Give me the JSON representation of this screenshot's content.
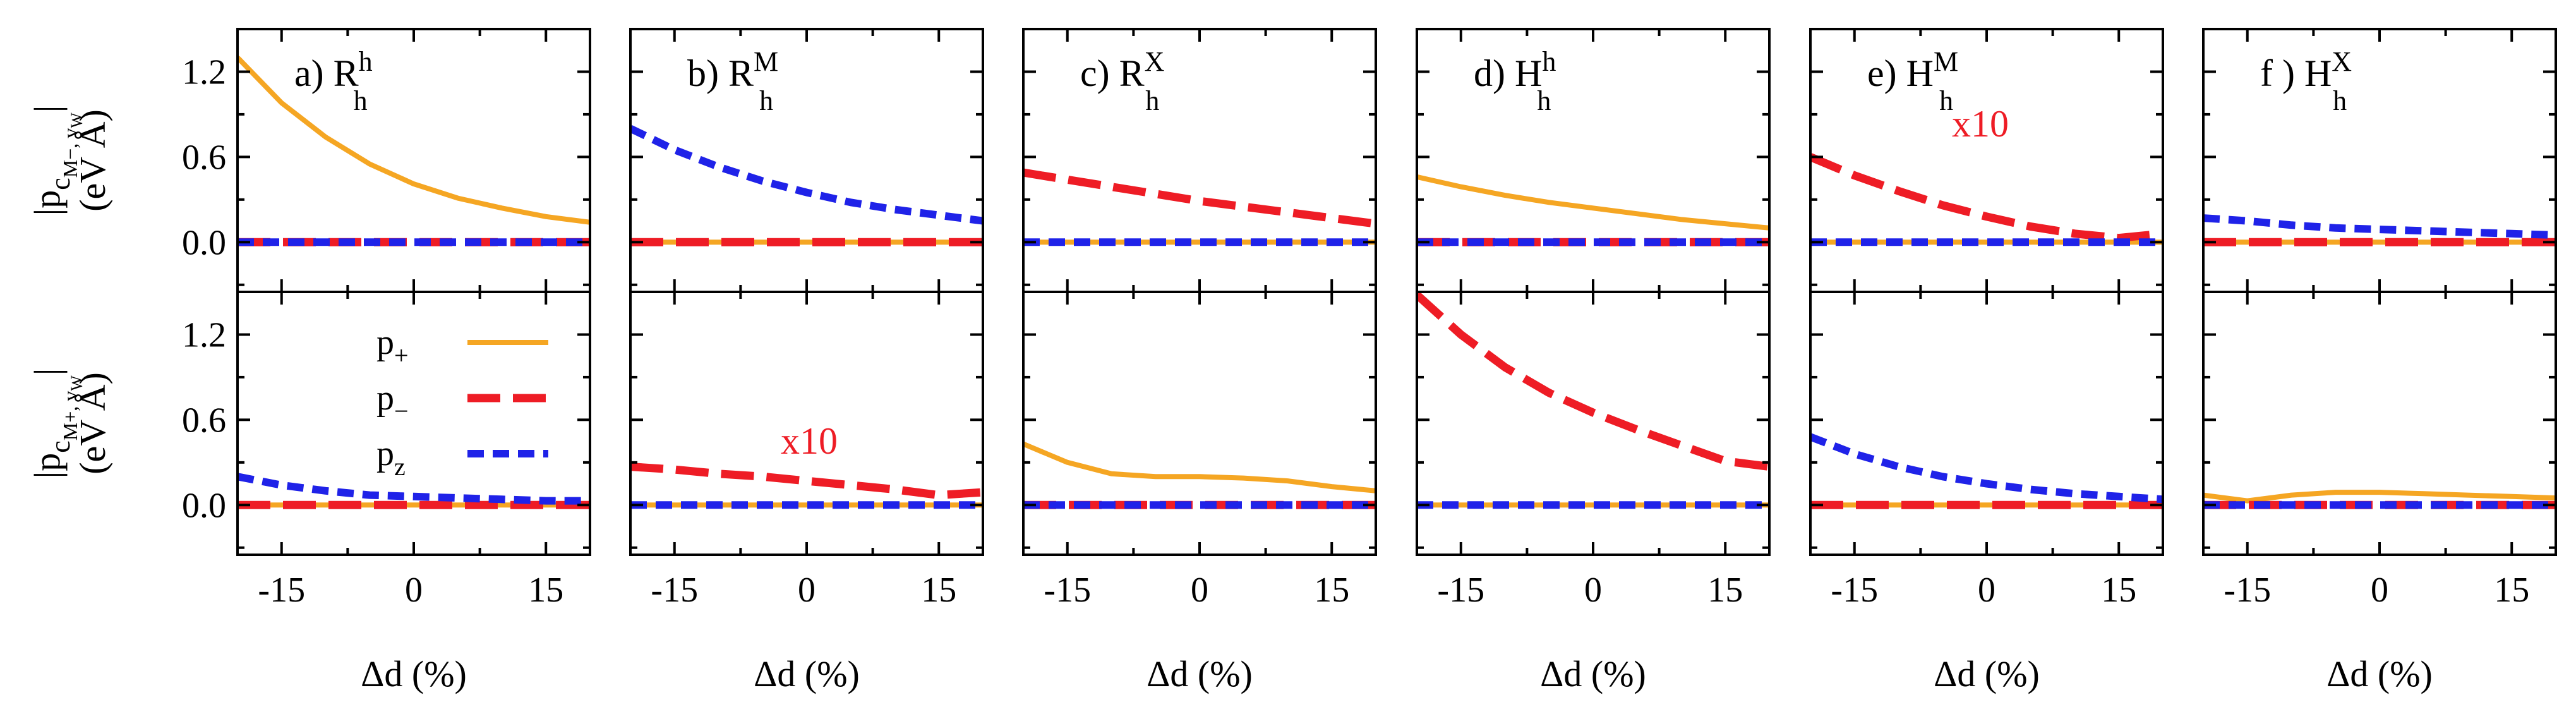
{
  "chart_data": {
    "type": "line",
    "layout": "2 rows x 6 columns of panels sharing axes",
    "x": [
      -20,
      -15,
      -10,
      -5,
      0,
      5,
      10,
      15,
      20
    ],
    "xlim": [
      -20,
      20
    ],
    "ylim": [
      -0.35,
      1.5
    ],
    "xticks": [
      -15,
      0,
      15
    ],
    "xtick_labels": [
      "-15",
      "0",
      "15"
    ],
    "yticks": [
      0.0,
      0.6,
      1.2
    ],
    "ytick_labels": [
      "0.0",
      "0.6",
      "1.2"
    ],
    "xlabel": "Δd (%)",
    "row_ylabels": [
      {
        "main": "|p",
        "sub": "c",
        "subsub": "M−, v",
        "subsub2": "W",
        "unit": "(eV Å)",
        "full": "|p_{c_{M−},v_W}| (eV Å)"
      },
      {
        "main": "|p",
        "sub": "c",
        "subsub": "M+, v",
        "subsub2": "W",
        "unit": "(eV Å)",
        "full": "|p_{c_{M+},v_W}| (eV Å)"
      }
    ],
    "legend": {
      "location": "bottom-left row, upper right",
      "entries": [
        {
          "label": "p",
          "sub": "+",
          "series": "p+"
        },
        {
          "label": "p",
          "sub": "−",
          "series": "p−"
        },
        {
          "label": "p",
          "sub": "z",
          "series": "pz"
        }
      ]
    },
    "series_styles": {
      "p+": {
        "color": "#F5A623",
        "style": "solid"
      },
      "p−": {
        "color": "#EE1C25",
        "style": "long-dash"
      },
      "pz": {
        "color": "#1F22E8",
        "style": "short-dash"
      }
    },
    "panels": [
      {
        "label": "a) R",
        "label_sub": "h",
        "label_sup": "h",
        "rows": [
          {
            "series": [
              {
                "name": "p+",
                "values": [
                  1.3,
                  0.98,
                  0.74,
                  0.55,
                  0.41,
                  0.31,
                  0.24,
                  0.18,
                  0.14
                ]
              },
              {
                "name": "p−",
                "values": [
                  0,
                  0,
                  0,
                  0,
                  0,
                  0,
                  0,
                  0,
                  0
                ]
              },
              {
                "name": "pz",
                "values": [
                  0,
                  0,
                  0,
                  0,
                  0,
                  0,
                  0,
                  0,
                  0
                ]
              }
            ]
          },
          {
            "series": [
              {
                "name": "p+",
                "values": [
                  0,
                  0,
                  0,
                  0,
                  0,
                  0,
                  0,
                  0,
                  0
                ]
              },
              {
                "name": "p−",
                "values": [
                  0,
                  0,
                  0,
                  0,
                  0,
                  0,
                  0,
                  0,
                  0
                ]
              },
              {
                "name": "pz",
                "values": [
                  0.2,
                  0.14,
                  0.1,
                  0.07,
                  0.06,
                  0.05,
                  0.04,
                  0.03,
                  0.03
                ]
              }
            ]
          }
        ]
      },
      {
        "label": "b) R",
        "label_sub": "h",
        "label_sup": "M",
        "rows": [
          {
            "series": [
              {
                "name": "p+",
                "values": [
                  0,
                  0,
                  0,
                  0,
                  0,
                  0,
                  0,
                  0,
                  0
                ]
              },
              {
                "name": "p−",
                "values": [
                  0,
                  0,
                  0,
                  0,
                  0,
                  0,
                  0,
                  0,
                  0
                ]
              },
              {
                "name": "pz",
                "values": [
                  0.8,
                  0.65,
                  0.53,
                  0.43,
                  0.35,
                  0.28,
                  0.23,
                  0.19,
                  0.15
                ]
              }
            ]
          },
          {
            "annotation": "x10",
            "series": [
              {
                "name": "p+",
                "values": [
                  0,
                  0,
                  0,
                  0,
                  0,
                  0,
                  0,
                  0,
                  0
                ]
              },
              {
                "name": "p−",
                "values": [
                  0.27,
                  0.25,
                  0.22,
                  0.2,
                  0.17,
                  0.14,
                  0.11,
                  0.07,
                  0.09
                ]
              },
              {
                "name": "pz",
                "values": [
                  0,
                  0,
                  0,
                  0,
                  0,
                  0,
                  0,
                  0,
                  0
                ]
              }
            ]
          }
        ]
      },
      {
        "label": "c) R",
        "label_sub": "h",
        "label_sup": "X",
        "rows": [
          {
            "series": [
              {
                "name": "p+",
                "values": [
                  0,
                  0,
                  0,
                  0,
                  0,
                  0,
                  0,
                  0,
                  0
                ]
              },
              {
                "name": "p−",
                "values": [
                  0.49,
                  0.44,
                  0.39,
                  0.34,
                  0.29,
                  0.25,
                  0.21,
                  0.17,
                  0.13
                ]
              },
              {
                "name": "pz",
                "values": [
                  0,
                  0,
                  0,
                  0,
                  0,
                  0,
                  0,
                  0,
                  0
                ]
              }
            ]
          },
          {
            "series": [
              {
                "name": "p+",
                "values": [
                  0.43,
                  0.3,
                  0.22,
                  0.2,
                  0.2,
                  0.19,
                  0.17,
                  0.13,
                  0.1
                ]
              },
              {
                "name": "p−",
                "values": [
                  0,
                  0,
                  0,
                  0,
                  0,
                  0,
                  0,
                  0,
                  0
                ]
              },
              {
                "name": "pz",
                "values": [
                  0,
                  0,
                  0,
                  0,
                  0,
                  0,
                  0,
                  0,
                  0
                ]
              }
            ]
          }
        ]
      },
      {
        "label": "d) H",
        "label_sub": "h",
        "label_sup": "h",
        "rows": [
          {
            "series": [
              {
                "name": "p+",
                "values": [
                  0.46,
                  0.39,
                  0.33,
                  0.28,
                  0.24,
                  0.2,
                  0.16,
                  0.13,
                  0.1
                ]
              },
              {
                "name": "p−",
                "values": [
                  0,
                  0,
                  0,
                  0,
                  0,
                  0,
                  0,
                  0,
                  0
                ]
              },
              {
                "name": "pz",
                "values": [
                  0,
                  0,
                  0,
                  0,
                  0,
                  0,
                  0,
                  0,
                  0
                ]
              }
            ]
          },
          {
            "series": [
              {
                "name": "p+",
                "values": [
                  0,
                  0,
                  0,
                  0,
                  0,
                  0,
                  0,
                  0,
                  0
                ]
              },
              {
                "name": "p−",
                "values": [
                  1.48,
                  1.2,
                  0.97,
                  0.79,
                  0.65,
                  0.53,
                  0.42,
                  0.31,
                  0.27
                ]
              },
              {
                "name": "pz",
                "values": [
                  0,
                  0,
                  0,
                  0,
                  0,
                  0,
                  0,
                  0,
                  0
                ]
              }
            ]
          }
        ]
      },
      {
        "label": "e) H",
        "label_sub": "h",
        "label_sup": "M",
        "rows": [
          {
            "annotation": "x10",
            "series": [
              {
                "name": "p+",
                "values": [
                  0,
                  0,
                  0,
                  0,
                  0,
                  0,
                  0,
                  0,
                  0
                ]
              },
              {
                "name": "p−",
                "values": [
                  0.6,
                  0.47,
                  0.36,
                  0.26,
                  0.18,
                  0.11,
                  0.06,
                  0.03,
                  0.06
                ]
              },
              {
                "name": "pz",
                "values": [
                  0,
                  0,
                  0,
                  0,
                  0,
                  0,
                  0,
                  0,
                  0
                ]
              }
            ]
          },
          {
            "series": [
              {
                "name": "p+",
                "values": [
                  0,
                  0,
                  0,
                  0,
                  0,
                  0,
                  0,
                  0,
                  0
                ]
              },
              {
                "name": "p−",
                "values": [
                  0,
                  0,
                  0,
                  0,
                  0,
                  0,
                  0,
                  0,
                  0
                ]
              },
              {
                "name": "pz",
                "values": [
                  0.48,
                  0.36,
                  0.27,
                  0.2,
                  0.15,
                  0.11,
                  0.08,
                  0.06,
                  0.04
                ]
              }
            ]
          }
        ]
      },
      {
        "label": "f ) H",
        "label_sub": "h",
        "label_sup": "X",
        "rows": [
          {
            "series": [
              {
                "name": "p+",
                "values": [
                  0,
                  0,
                  0,
                  0,
                  0,
                  0,
                  0,
                  0,
                  0
                ]
              },
              {
                "name": "p−",
                "values": [
                  0,
                  0,
                  0,
                  0,
                  0,
                  0,
                  0,
                  0,
                  0
                ]
              },
              {
                "name": "pz",
                "values": [
                  0.17,
                  0.15,
                  0.12,
                  0.1,
                  0.09,
                  0.08,
                  0.07,
                  0.06,
                  0.05
                ]
              }
            ]
          },
          {
            "series": [
              {
                "name": "p+",
                "values": [
                  0.07,
                  0.03,
                  0.07,
                  0.09,
                  0.09,
                  0.08,
                  0.07,
                  0.06,
                  0.05
                ]
              },
              {
                "name": "p−",
                "values": [
                  0,
                  0,
                  0,
                  0,
                  0,
                  0,
                  0,
                  0,
                  0
                ]
              },
              {
                "name": "pz",
                "values": [
                  0,
                  0,
                  0,
                  0,
                  0,
                  0,
                  0,
                  0,
                  0
                ]
              }
            ]
          }
        ]
      }
    ]
  }
}
